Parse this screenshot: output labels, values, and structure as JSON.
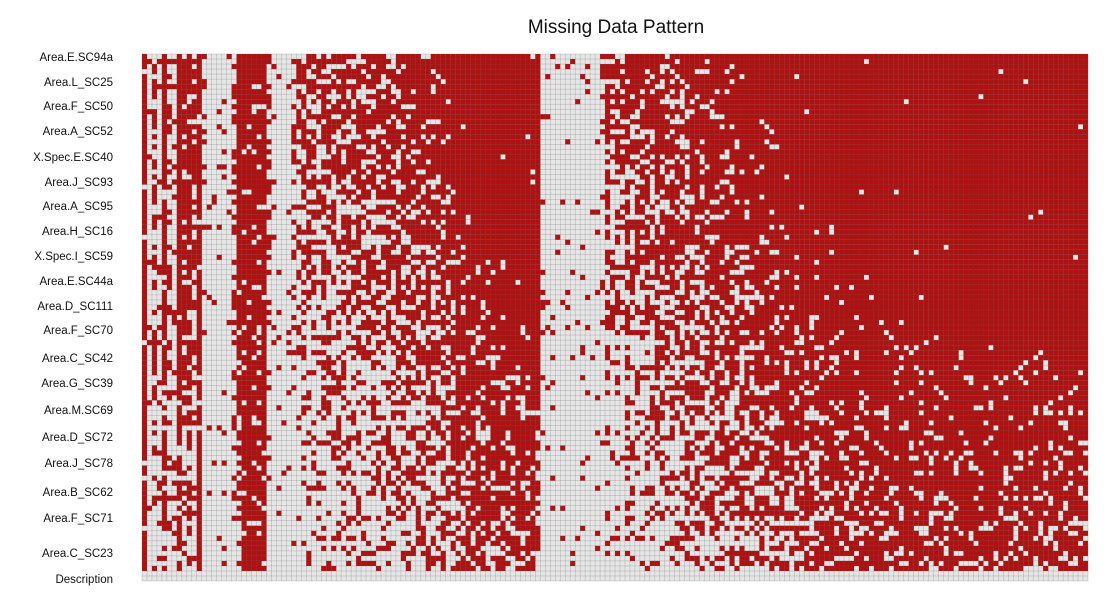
{
  "chart_data": {
    "type": "heatmap",
    "title": "Missing Data Pattern",
    "xlabel": "",
    "ylabel": "",
    "grid": true,
    "legend": "none",
    "colors": {
      "missing": "#b01010",
      "observed": "#e6e6e6",
      "grid_line": "#555555",
      "background": "#ffffff"
    },
    "row_labels": [
      "Area.E.SC94a",
      "Area.L_SC25",
      "Area.F_SC50",
      "Area.A_SC52",
      "X.Spec.E.SC40",
      "Area.J_SC93",
      "Area.A_SC95",
      "Area.H_SC16",
      "X.Spec.I_SC59",
      "Area.E.SC44a",
      "Area.D_SC111",
      "Area.F_SC70",
      "Area.C_SC42",
      "Area.G_SC39",
      "Area.M.SC69",
      "Area.D_SC72",
      "Area.J_SC78",
      "Area.B_SC62",
      "Area.F_SC71",
      "Area.C_SC23",
      "Description"
    ],
    "n_rows": 105,
    "n_cols": 190,
    "column_missing_rates": [
      0.9,
      0.12,
      0.55,
      0.1,
      0.78,
      0.35,
      0.22,
      0.85,
      0.6,
      0.7,
      0.4,
      0.92,
      0.05,
      0.05,
      0.05,
      0.05,
      0.05,
      0.05,
      0.3,
      0.8,
      0.92,
      0.94,
      0.9,
      0.88,
      0.92,
      0.3,
      0.05,
      0.05,
      0.05,
      0.05,
      0.2,
      0.25,
      0.4,
      0.4,
      0.35,
      0.3,
      0.45,
      0.35,
      0.45,
      0.4,
      0.5,
      0.35,
      0.45,
      0.55,
      0.4,
      0.5,
      0.45,
      0.55,
      0.4,
      0.55,
      0.45,
      0.5,
      0.55,
      0.45,
      0.55,
      0.6,
      0.55,
      0.65,
      0.55,
      0.6,
      0.65,
      0.6,
      0.7,
      0.75,
      0.7,
      0.75,
      0.8,
      0.8,
      0.85,
      0.8,
      0.85,
      0.9,
      0.85,
      0.9,
      0.88,
      0.92,
      0.9,
      0.92,
      0.95,
      0.92,
      0.04,
      0.04,
      0.04,
      0.04,
      0.04,
      0.04,
      0.04,
      0.04,
      0.04,
      0.04,
      0.05,
      0.05,
      0.12,
      0.45,
      0.25,
      0.4,
      0.2,
      0.5,
      0.35,
      0.45,
      0.4,
      0.5,
      0.45,
      0.55,
      0.45,
      0.5,
      0.55,
      0.5,
      0.45,
      0.55,
      0.6,
      0.55,
      0.6,
      0.55,
      0.65,
      0.6,
      0.65,
      0.6,
      0.65,
      0.7,
      0.65,
      0.7,
      0.7,
      0.75,
      0.7,
      0.75,
      0.75,
      0.78,
      0.8,
      0.78,
      0.8,
      0.82,
      0.8,
      0.85,
      0.82,
      0.85,
      0.85,
      0.88,
      0.85,
      0.88,
      0.88,
      0.9,
      0.88,
      0.9,
      0.9,
      0.92,
      0.9,
      0.92,
      0.92,
      0.93,
      0.92,
      0.93,
      0.93,
      0.94,
      0.93,
      0.94,
      0.94,
      0.95,
      0.94,
      0.95,
      0.95,
      0.95,
      0.95,
      0.96,
      0.95,
      0.96,
      0.96,
      0.96,
      0.96,
      0.97,
      0.96,
      0.97,
      0.97,
      0.97,
      0.97,
      0.97,
      0.97,
      0.98,
      0.97,
      0.98,
      0.98,
      0.98,
      0.98,
      0.98,
      0.98,
      0.98,
      0.98,
      0.98,
      0.98,
      0.98
    ],
    "column_trend": [
      0,
      0,
      1,
      0,
      1,
      0,
      0,
      1,
      1,
      1,
      1,
      0,
      0,
      0,
      0,
      0,
      0,
      0,
      1,
      1,
      0,
      0,
      0,
      0,
      0,
      1,
      0,
      0,
      0,
      0,
      1,
      1,
      1,
      1,
      1,
      1,
      1,
      1,
      1,
      1,
      1,
      1,
      1,
      1,
      1,
      1,
      1,
      1,
      1,
      1,
      1,
      1,
      1,
      1,
      1,
      1,
      1,
      1,
      1,
      1,
      1,
      1,
      1,
      1,
      1,
      1,
      1,
      1,
      1,
      1,
      1,
      1,
      1,
      1,
      1,
      1,
      1,
      1,
      0,
      1,
      0,
      0,
      0,
      0,
      0,
      0,
      0,
      0,
      0,
      0,
      0,
      0,
      1,
      1,
      1,
      1,
      1,
      1,
      1,
      1,
      1,
      1,
      1,
      1,
      1,
      1,
      1,
      1,
      1,
      1,
      1,
      1,
      1,
      1,
      1,
      1,
      1,
      1,
      1,
      1,
      1,
      1,
      1,
      1,
      1,
      1,
      1,
      1,
      1,
      1,
      1,
      1,
      1,
      1,
      1,
      1,
      1,
      1,
      1,
      1,
      1,
      1,
      1,
      1,
      1,
      1,
      1,
      1,
      1,
      1,
      1,
      1,
      1,
      1,
      1,
      1,
      1,
      1,
      1,
      1,
      1,
      1,
      1,
      1,
      1,
      1,
      1,
      1,
      1,
      1,
      1,
      1,
      1,
      1,
      1,
      1,
      1,
      1,
      1,
      1,
      1,
      1,
      1,
      1,
      1,
      1,
      1,
      1,
      1,
      1
    ]
  }
}
